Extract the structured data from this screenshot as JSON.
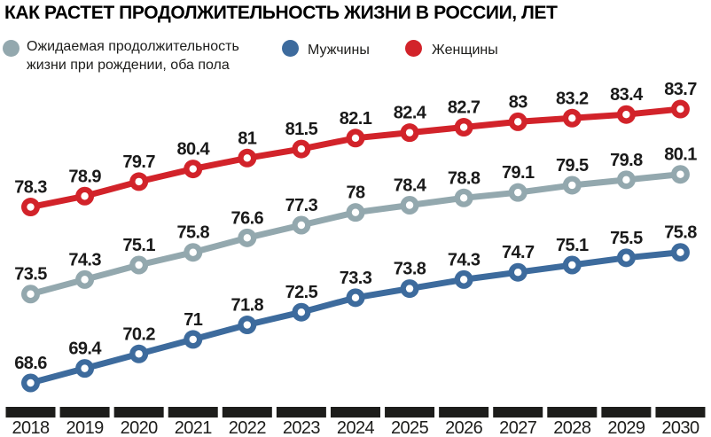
{
  "title": "КАК РАСТЕТ ПРОДОЛЖИТЕЛЬНОСТЬ ЖИЗНИ В РОССИИ, ЛЕТ",
  "legend": {
    "both": {
      "label": "Ожидаемая продолжительность жизни при рождении, оба пола",
      "color": "#93a8ae"
    },
    "men": {
      "label": "Мужчины",
      "color": "#3d6b9d"
    },
    "women": {
      "label": "Женщины",
      "color": "#d2232a"
    }
  },
  "axis": {
    "tick_color": "#1d1d1b",
    "year_label_color": "#1d1d1b"
  },
  "colors": {
    "background": "#ffffff",
    "title_text": "#000000",
    "value_labels": "#1a1a1a"
  },
  "chart_data": {
    "type": "line",
    "title": "КАК РАСТЕТ ПРОДОЛЖИТЕЛЬНОСТЬ ЖИЗНИ В РОССИИ, ЛЕТ",
    "x": [
      2018,
      2019,
      2020,
      2021,
      2022,
      2023,
      2024,
      2025,
      2026,
      2027,
      2028,
      2029,
      2030
    ],
    "series": [
      {
        "name": "Женщины",
        "color": "#d2232a",
        "values": [
          78.3,
          78.9,
          79.7,
          80.4,
          81,
          81.5,
          82.1,
          82.4,
          82.7,
          83,
          83.2,
          83.4,
          83.7
        ]
      },
      {
        "name": "Ожидаемая продолжительность жизни при рождении, оба пола",
        "color": "#93a8ae",
        "values": [
          73.5,
          74.3,
          75.1,
          75.8,
          76.6,
          77.3,
          78,
          78.4,
          78.8,
          79.1,
          79.5,
          79.8,
          80.1
        ]
      },
      {
        "name": "Мужчины",
        "color": "#3d6b9d",
        "values": [
          68.6,
          69.4,
          70.2,
          71,
          71.8,
          72.5,
          73.3,
          73.8,
          74.3,
          74.7,
          75.1,
          75.5,
          75.8
        ]
      }
    ],
    "ylim": [
      67,
      85
    ],
    "grid": false,
    "legend_position": "top",
    "point_labels": true,
    "decimal_separator": "."
  }
}
